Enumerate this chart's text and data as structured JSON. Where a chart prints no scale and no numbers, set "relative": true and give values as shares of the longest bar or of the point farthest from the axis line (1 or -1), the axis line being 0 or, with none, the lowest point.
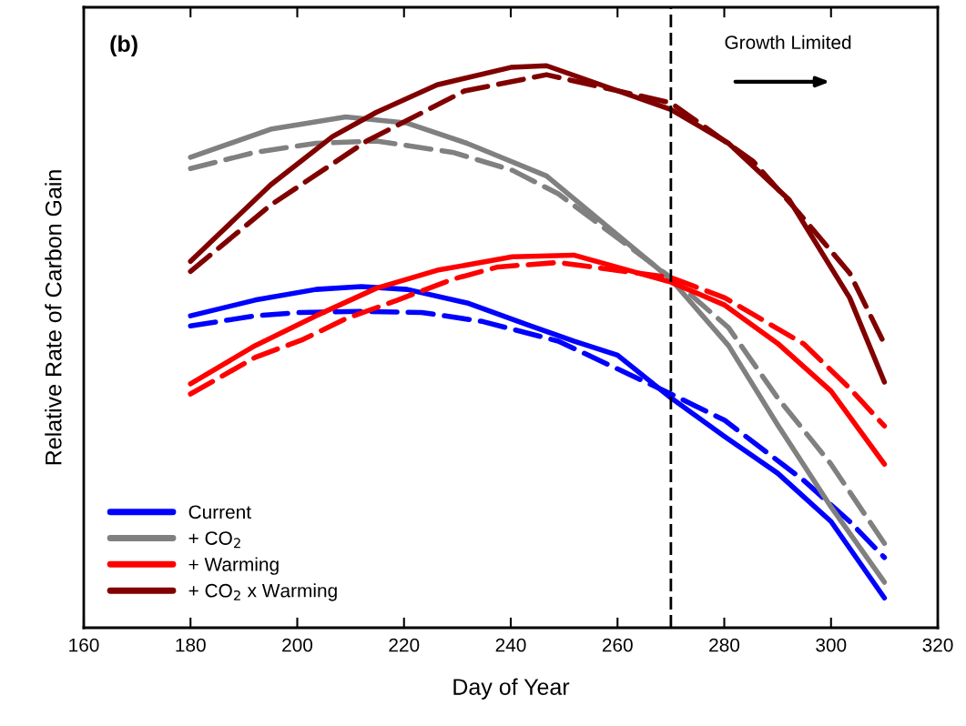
{
  "chart_data": {
    "type": "line",
    "relative": true,
    "xlabel": "Day of Year",
    "ylabel": "Relative Rate of Carbon Gain",
    "xlim": [
      160,
      320
    ],
    "xticks": [
      160,
      180,
      200,
      220,
      240,
      260,
      280,
      300,
      320
    ],
    "grid": false,
    "legend": "bottom left",
    "annotations": [
      "(b)",
      "Growth Limited"
    ],
    "ref_lines": [
      {
        "axis": "x",
        "value": 270,
        "color": "#000000",
        "line_style": "dashed"
      }
    ],
    "series": [
      {
        "name": "Current",
        "color": "#0000ff",
        "line_style": "solid",
        "x": [
          180,
          192.1,
          203.5,
          212.0,
          220.6,
          231.8,
          243.2,
          251.8,
          260,
          270,
          280.1,
          290,
          300,
          310
        ],
        "values": [
          0.555,
          0.583,
          0.602,
          0.607,
          0.602,
          0.578,
          0.539,
          0.51,
          0.485,
          0.409,
          0.34,
          0.275,
          0.189,
          0.053
        ]
      },
      {
        "color": "#0000ff",
        "line_style": "dashed",
        "x": [
          180,
          192.1,
          200.6,
          212.0,
          223.3,
          234.7,
          248.9,
          270,
          280.1,
          294.9,
          303.5,
          310
        ],
        "values": [
          0.537,
          0.555,
          0.561,
          0.563,
          0.561,
          0.545,
          0.51,
          0.416,
          0.369,
          0.262,
          0.189,
          0.125
        ]
      },
      {
        "name": "+ CO$_{2}$",
        "color": "#808080",
        "line_style": "solid",
        "x": [
          180,
          195,
          209.1,
          220.6,
          231.8,
          246.7,
          270,
          280.8,
          290,
          300,
          310
        ],
        "values": [
          0.837,
          0.887,
          0.909,
          0.898,
          0.862,
          0.804,
          0.62,
          0.502,
          0.361,
          0.215,
          0.081
        ]
      },
      {
        "color": "#808080",
        "line_style": "dashed",
        "x": [
          180,
          192.1,
          203.5,
          214.8,
          229.1,
          240.3,
          248.9,
          270,
          280.8,
          290,
          300,
          310
        ],
        "values": [
          0.817,
          0.846,
          0.862,
          0.866,
          0.846,
          0.814,
          0.772,
          0.623,
          0.534,
          0.409,
          0.291,
          0.15
        ]
      },
      {
        "name": "+ Warming",
        "color": "#ff0000",
        "line_style": "solid",
        "x": [
          180,
          192.1,
          203.5,
          214.8,
          226.2,
          240.3,
          251.8,
          270,
          280.1,
          290,
          300,
          310
        ],
        "values": [
          0.434,
          0.502,
          0.555,
          0.604,
          0.636,
          0.66,
          0.663,
          0.615,
          0.574,
          0.506,
          0.421,
          0.291
        ]
      },
      {
        "color": "#ff0000",
        "line_style": "dashed",
        "x": [
          180,
          192.1,
          201.1,
          209.1,
          218.8,
          229.1,
          237.6,
          248.9,
          270,
          280.1,
          294.9,
          303.5,
          310
        ],
        "values": [
          0.416,
          0.481,
          0.513,
          0.55,
          0.583,
          0.62,
          0.642,
          0.65,
          0.623,
          0.587,
          0.505,
          0.426,
          0.359
        ]
      },
      {
        "name": "+ CO$_{2}$ x Warming",
        "color": "#800000",
        "line_style": "solid",
        "x": [
          180,
          195,
          206.6,
          214.8,
          226.2,
          240,
          246.7,
          270,
          280.8,
          292.2,
          303.5,
          310
        ],
        "values": [
          0.652,
          0.788,
          0.874,
          0.917,
          0.966,
          0.997,
          1.0,
          0.922,
          0.862,
          0.761,
          0.587,
          0.437
        ]
      },
      {
        "color": "#800000",
        "line_style": "dashed",
        "x": [
          180,
          195,
          213.0,
          231.3,
          246.7,
          270,
          285.4,
          293.9,
          303.5,
          310
        ],
        "values": [
          0.634,
          0.752,
          0.866,
          0.955,
          0.984,
          0.934,
          0.83,
          0.739,
          0.631,
          0.505
        ]
      }
    ]
  }
}
